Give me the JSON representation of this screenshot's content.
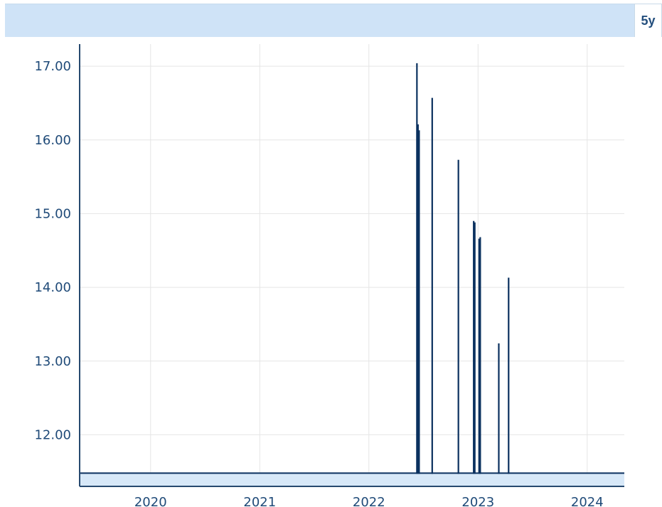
{
  "range_selector": {
    "label": "5y"
  },
  "colors": {
    "header_background": "#cfe3f7",
    "line": "#0b315f",
    "baseline_band": "#d7e8f8",
    "gridline": "#e5e5e5",
    "axis": "#27496f",
    "tick_text": "#1f4a78"
  },
  "chart_data": {
    "type": "line",
    "x_axis": {
      "tick_labels": [
        "2020",
        "2021",
        "2022",
        "2023",
        "2024"
      ],
      "range": [
        2019.35,
        2024.34
      ]
    },
    "y_axis": {
      "tick_labels": [
        "17.00",
        "16.00",
        "15.00",
        "14.00",
        "13.00",
        "12.00"
      ],
      "tick_values": [
        17,
        16,
        15,
        14,
        13,
        12
      ],
      "range": [
        11.3,
        17.3
      ]
    },
    "baseline": 11.48,
    "grid": true,
    "series": [
      {
        "spikes": [
          {
            "x": 2022.44,
            "y": 17.03
          },
          {
            "x": 2022.45,
            "y": 16.2
          },
          {
            "x": 2022.46,
            "y": 16.12
          },
          {
            "x": 2022.58,
            "y": 16.56
          },
          {
            "x": 2022.82,
            "y": 15.72
          },
          {
            "x": 2022.96,
            "y": 14.89
          },
          {
            "x": 2022.97,
            "y": 14.87
          },
          {
            "x": 2023.01,
            "y": 14.65
          },
          {
            "x": 2023.02,
            "y": 14.67
          },
          {
            "x": 2023.19,
            "y": 13.23
          },
          {
            "x": 2023.28,
            "y": 14.12
          }
        ]
      }
    ]
  }
}
